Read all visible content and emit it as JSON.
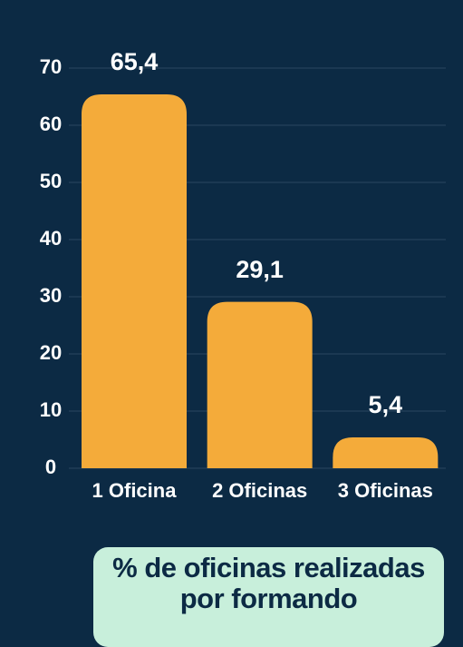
{
  "chart_data": {
    "type": "bar",
    "title": "% de oficinas realizadas por formando",
    "categories": [
      "1 Oficina",
      "2 Oficinas",
      "3 Oficinas"
    ],
    "values": [
      65.4,
      29.1,
      5.4
    ],
    "value_labels": [
      "65,4",
      "29,1",
      "5,4"
    ],
    "color": "#f4ab3a",
    "ylim": [
      0,
      70
    ],
    "yticks": [
      0,
      10,
      20,
      30,
      40,
      50,
      60,
      70
    ],
    "grid": true
  }
}
